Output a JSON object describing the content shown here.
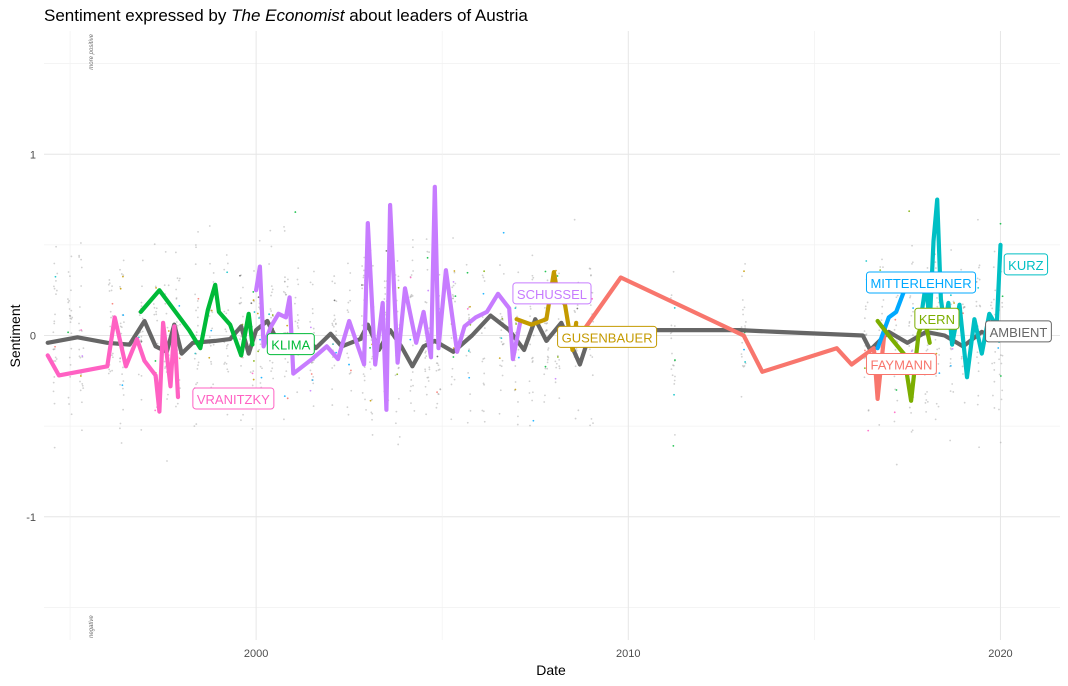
{
  "title": {
    "prefix": "Sentiment expressed by ",
    "emphasis": "The Economist",
    "suffix": " about leaders of Austria"
  },
  "chart_data": {
    "type": "line",
    "title": "Sentiment expressed by The Economist about leaders of Austria",
    "xlabel": "Date",
    "ylabel": "Sentiment",
    "xlim": [
      1994.3,
      2021.6
    ],
    "ylim": [
      -1.68,
      1.68
    ],
    "x_ticks": [
      2000,
      2010,
      2020
    ],
    "y_ticks": [
      -1,
      0,
      1
    ],
    "grid": true,
    "side_notes": {
      "top": "more positive",
      "bottom": "negative"
    },
    "series": [
      {
        "name": "AMBIENT",
        "color": "#666666",
        "points": [
          [
            1994.4,
            -0.04
          ],
          [
            1995.2,
            -0.01
          ],
          [
            1996.0,
            -0.04
          ],
          [
            1996.6,
            -0.05
          ],
          [
            1997.0,
            0.08
          ],
          [
            1997.3,
            -0.06
          ],
          [
            1997.6,
            -0.09
          ],
          [
            1997.8,
            0.06
          ],
          [
            1998.0,
            -0.1
          ],
          [
            1998.3,
            -0.04
          ],
          [
            1998.9,
            -0.03
          ],
          [
            1999.3,
            -0.02
          ],
          [
            1999.6,
            0.05
          ],
          [
            1999.8,
            -0.1
          ],
          [
            2000.0,
            0.03
          ],
          [
            2000.3,
            0.08
          ],
          [
            2000.6,
            -0.04
          ],
          [
            2001.0,
            -0.06
          ],
          [
            2001.3,
            0.0
          ],
          [
            2001.6,
            -0.07
          ],
          [
            2002.0,
            0.01
          ],
          [
            2002.3,
            -0.06
          ],
          [
            2002.8,
            -0.02
          ],
          [
            2003.0,
            0.06
          ],
          [
            2003.3,
            -0.08
          ],
          [
            2003.6,
            0.03
          ],
          [
            2003.9,
            -0.06
          ],
          [
            2004.2,
            -0.17
          ],
          [
            2004.5,
            -0.06
          ],
          [
            2004.8,
            -0.03
          ],
          [
            2005.3,
            -0.09
          ],
          [
            2005.8,
            0.0
          ],
          [
            2006.3,
            0.11
          ],
          [
            2006.8,
            0.03
          ],
          [
            2007.2,
            -0.08
          ],
          [
            2007.5,
            0.09
          ],
          [
            2007.8,
            -0.03
          ],
          [
            2008.2,
            0.07
          ],
          [
            2008.7,
            -0.16
          ],
          [
            2009.0,
            0.03
          ],
          [
            2011.0,
            0.03
          ],
          [
            2013.0,
            0.03
          ],
          [
            2014.0,
            0.02
          ],
          [
            2016.3,
            0.0
          ],
          [
            2016.5,
            -0.08
          ],
          [
            2017.0,
            0.02
          ],
          [
            2017.5,
            -0.04
          ],
          [
            2018.0,
            0.02
          ],
          [
            2018.5,
            0.0
          ],
          [
            2019.0,
            -0.06
          ],
          [
            2019.5,
            0.02
          ],
          [
            2019.9,
            -0.02
          ],
          [
            2020.0,
            0.0
          ]
        ]
      },
      {
        "name": "VRANITZKY",
        "color": "#ff61c3",
        "points": [
          [
            1994.4,
            -0.11
          ],
          [
            1994.7,
            -0.22
          ],
          [
            1996.0,
            -0.17
          ],
          [
            1996.2,
            0.1
          ],
          [
            1996.5,
            -0.17
          ],
          [
            1996.8,
            -0.02
          ],
          [
            1997.0,
            -0.14
          ],
          [
            1997.3,
            -0.22
          ],
          [
            1997.4,
            -0.42
          ],
          [
            1997.5,
            0.07
          ],
          [
            1997.7,
            -0.28
          ],
          [
            1997.8,
            0.05
          ],
          [
            1997.9,
            -0.34
          ]
        ]
      },
      {
        "name": "KLIMA",
        "color": "#00ba38",
        "points": [
          [
            1996.9,
            0.13
          ],
          [
            1997.4,
            0.25
          ],
          [
            1998.2,
            0.03
          ],
          [
            1998.5,
            -0.07
          ],
          [
            1998.7,
            0.14
          ],
          [
            1998.9,
            0.28
          ],
          [
            1999.0,
            0.13
          ],
          [
            1999.3,
            0.06
          ],
          [
            1999.6,
            -0.11
          ],
          [
            1999.8,
            0.12
          ],
          [
            1999.9,
            -0.05
          ]
        ]
      },
      {
        "name": "SCHUSSEL",
        "color": "#c77cff",
        "points": [
          [
            2000.0,
            0.25
          ],
          [
            2000.1,
            0.38
          ],
          [
            2000.2,
            -0.06
          ],
          [
            2000.4,
            0.05
          ],
          [
            2000.6,
            0.12
          ],
          [
            2000.8,
            0.1
          ],
          [
            2000.9,
            0.21
          ],
          [
            2001.0,
            -0.21
          ],
          [
            2001.5,
            -0.13
          ],
          [
            2001.9,
            -0.06
          ],
          [
            2002.2,
            -0.13
          ],
          [
            2002.5,
            0.08
          ],
          [
            2002.9,
            -0.16
          ],
          [
            2003.0,
            0.62
          ],
          [
            2003.2,
            -0.16
          ],
          [
            2003.4,
            0.18
          ],
          [
            2003.5,
            -0.41
          ],
          [
            2003.6,
            0.72
          ],
          [
            2003.8,
            -0.15
          ],
          [
            2004.0,
            0.26
          ],
          [
            2004.3,
            -0.04
          ],
          [
            2004.5,
            0.13
          ],
          [
            2004.7,
            -0.12
          ],
          [
            2004.8,
            0.82
          ],
          [
            2004.9,
            -0.07
          ],
          [
            2005.1,
            0.36
          ],
          [
            2005.4,
            -0.09
          ],
          [
            2005.6,
            0.05
          ],
          [
            2005.9,
            0.1
          ],
          [
            2006.2,
            0.13
          ],
          [
            2006.5,
            0.23
          ],
          [
            2006.8,
            0.15
          ],
          [
            2006.9,
            -0.13
          ],
          [
            2007.1,
            0.08
          ]
        ]
      },
      {
        "name": "GUSENBAUER",
        "color": "#c49a00",
        "points": [
          [
            2007.0,
            0.09
          ],
          [
            2007.4,
            0.06
          ],
          [
            2007.8,
            0.09
          ],
          [
            2008.0,
            0.35
          ],
          [
            2008.1,
            0.23
          ],
          [
            2008.3,
            0.17
          ],
          [
            2008.5,
            -0.08
          ],
          [
            2008.6,
            0.07
          ]
        ]
      },
      {
        "name": "FAYMANN",
        "color": "#f8766d",
        "points": [
          [
            2008.7,
            0.0
          ],
          [
            2009.8,
            0.32
          ],
          [
            2013.1,
            0.0
          ],
          [
            2013.6,
            -0.2
          ],
          [
            2015.6,
            -0.07
          ],
          [
            2016.0,
            -0.16
          ],
          [
            2016.6,
            -0.07
          ],
          [
            2016.7,
            -0.35
          ],
          [
            2016.9,
            0.05
          ]
        ]
      },
      {
        "name": "MITTERLEHNER",
        "color": "#00a9ff",
        "points": [
          [
            2016.7,
            -0.07
          ],
          [
            2017.0,
            0.1
          ],
          [
            2017.2,
            0.13
          ],
          [
            2017.4,
            0.24
          ]
        ]
      },
      {
        "name": "KERN",
        "color": "#7cae00",
        "points": [
          [
            2016.7,
            0.08
          ],
          [
            2017.0,
            0.0
          ],
          [
            2017.2,
            -0.05
          ],
          [
            2017.4,
            -0.1
          ],
          [
            2017.6,
            -0.36
          ],
          [
            2017.8,
            0.01
          ],
          [
            2017.95,
            0.1
          ],
          [
            2018.1,
            -0.04
          ]
        ]
      },
      {
        "name": "KURZ",
        "color": "#00bfc4",
        "points": [
          [
            2017.9,
            0.15
          ],
          [
            2018.0,
            0.29
          ],
          [
            2018.1,
            0.06
          ],
          [
            2018.2,
            0.52
          ],
          [
            2018.3,
            0.75
          ],
          [
            2018.4,
            0.2
          ],
          [
            2018.5,
            0.05
          ],
          [
            2018.6,
            0.18
          ],
          [
            2018.7,
            -0.05
          ],
          [
            2018.9,
            0.17
          ],
          [
            2019.1,
            -0.23
          ],
          [
            2019.3,
            0.09
          ],
          [
            2019.5,
            -0.1
          ],
          [
            2019.7,
            0.12
          ],
          [
            2019.9,
            0.05
          ],
          [
            2020.0,
            0.5
          ]
        ]
      }
    ],
    "labels": [
      {
        "text": "VRANITZKY",
        "color": "#ff61c3",
        "x": 1998.3,
        "y": -0.35
      },
      {
        "text": "KLIMA",
        "color": "#00ba38",
        "x": 2000.3,
        "y": -0.05
      },
      {
        "text": "SCHUSSEL",
        "color": "#c77cff",
        "x": 2006.9,
        "y": 0.23
      },
      {
        "text": "GUSENBAUER",
        "color": "#c49a00",
        "x": 2008.1,
        "y": -0.01
      },
      {
        "text": "FAYMANN",
        "color": "#f8766d",
        "x": 2016.4,
        "y": -0.16
      },
      {
        "text": "MITTERLEHNER",
        "color": "#00a9ff",
        "x": 2016.4,
        "y": 0.29
      },
      {
        "text": "KERN",
        "color": "#7cae00",
        "x": 2017.7,
        "y": 0.09
      },
      {
        "text": "AMBIENT",
        "color": "#666666",
        "x": 2019.6,
        "y": 0.02
      },
      {
        "text": "KURZ",
        "color": "#00bfc4",
        "x": 2020.1,
        "y": 0.39
      }
    ]
  }
}
